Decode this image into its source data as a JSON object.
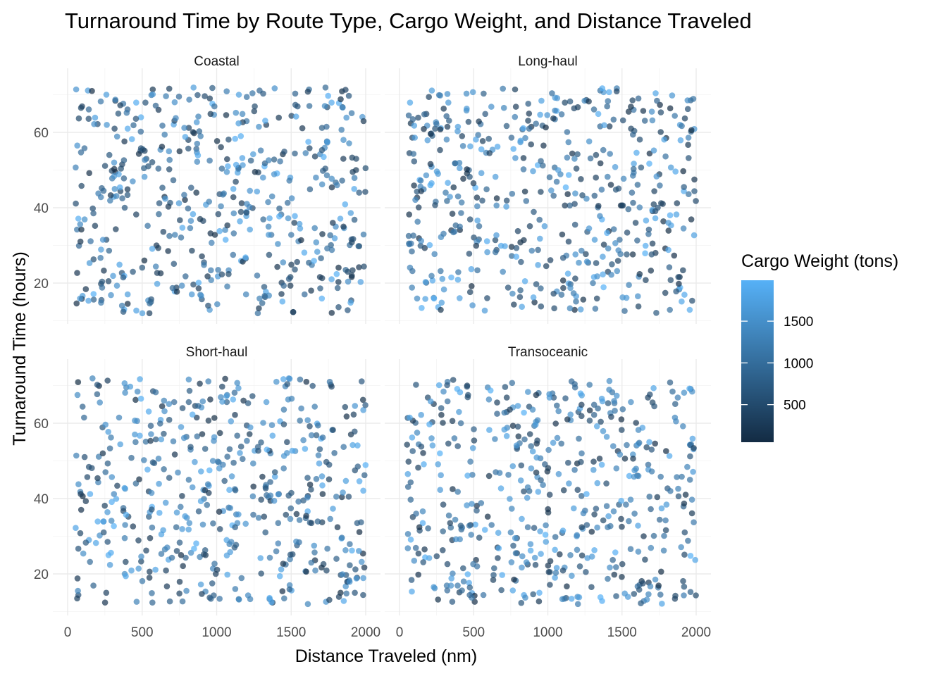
{
  "chart_data": {
    "type": "scatter",
    "title": "Turnaround Time by Route Type, Cargo Weight, and Distance Traveled",
    "xlabel": "Distance Traveled (nm)",
    "ylabel": "Turnaround Time (hours)",
    "xlim": [
      0,
      2000
    ],
    "ylim": [
      12,
      72
    ],
    "x_ticks": [
      "0",
      "500",
      "1000",
      "1500",
      "2000"
    ],
    "y_ticks": [
      "20",
      "40",
      "60"
    ],
    "x_tick_values": [
      0,
      500,
      1000,
      1500,
      2000
    ],
    "y_tick_values": [
      20,
      40,
      60
    ],
    "facets": [
      "Coastal",
      "Long-haul",
      "Short-haul",
      "Transoceanic"
    ],
    "color": {
      "title": "Cargo Weight (tons)",
      "ticks": [
        "500",
        "1000",
        "1500"
      ],
      "tick_values": [
        500,
        1000,
        1500
      ],
      "range": [
        50,
        1990
      ],
      "low": "#132B43",
      "high": "#56B1F7"
    },
    "grid": true,
    "legend_position": "right",
    "point_alpha": 0.7,
    "points_per_facet": 500,
    "series": [
      {
        "name": "Coastal",
        "seed": 11,
        "points": []
      },
      {
        "name": "Long-haul",
        "seed": 23,
        "points": []
      },
      {
        "name": "Short-haul",
        "seed": 37,
        "points": []
      },
      {
        "name": "Transoceanic",
        "seed": 59,
        "points": []
      }
    ]
  }
}
